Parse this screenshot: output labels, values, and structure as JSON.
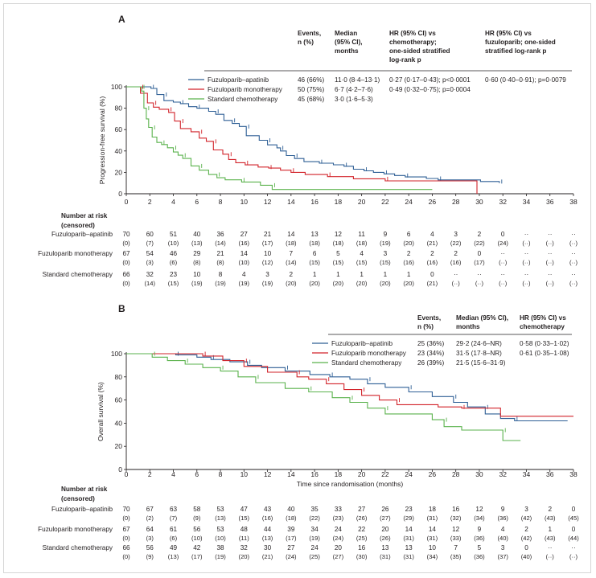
{
  "chart_data": [
    {
      "panel": "A",
      "type": "line",
      "ylabel": "Progression-free survival (%)",
      "xlabel": "",
      "xlim": [
        0,
        38
      ],
      "ylim": [
        0,
        100
      ],
      "xticks": [
        "0",
        "2",
        "4",
        "6",
        "8",
        "10",
        "12",
        "14",
        "16",
        "18",
        "20",
        "22",
        "24",
        "26",
        "28",
        "30",
        "32",
        "34",
        "36",
        "38"
      ],
      "yticks": [
        "0",
        "20",
        "40",
        "60",
        "80",
        "100"
      ],
      "table_header": {
        "events": [
          "Events,",
          "n (%)"
        ],
        "median": [
          "Median",
          "(95% CI),",
          "months"
        ],
        "hr_chemo": [
          "HR (95% CI) vs",
          "chemotherapy;",
          "one-sided stratified",
          "log-rank p"
        ],
        "hr_fuz": [
          "HR (95% CI) vs",
          "fuzuloparib; one-sided",
          "stratified log-rank p"
        ]
      },
      "series": [
        {
          "name": "Fuzuloparib–apatinib",
          "color": "#2e5f95",
          "events": "46 (66%)",
          "median": "11·0 (8·4–13·1)",
          "hr_chemo": "0·27 (0·17–0·43); p<0·0001",
          "hr_fuz": "0·60 (0·40–0·91); p=0·0079",
          "x": [
            0,
            2.1,
            2.6,
            3.2,
            4.0,
            4.6,
            5.3,
            6.0,
            7.0,
            7.6,
            8.3,
            9.0,
            9.6,
            10.2,
            11.3,
            12.0,
            12.8,
            13.1,
            13.6,
            14.3,
            15.1,
            16.4,
            17.6,
            18.5,
            19.3,
            20.2,
            21.0,
            21.9,
            22.8,
            23.7,
            25.5,
            26.5,
            30.1,
            31.7
          ],
          "y": [
            100,
            98.5,
            92.8,
            87.1,
            85.7,
            84.3,
            81.4,
            80,
            77.1,
            74.3,
            68.6,
            65.7,
            62.9,
            54.3,
            50,
            45.7,
            42.9,
            40,
            35.7,
            32.9,
            30,
            28.6,
            27.1,
            25.7,
            22.9,
            21.4,
            20,
            18.6,
            17.1,
            15.7,
            14.3,
            12.9,
            11.4,
            10
          ]
        },
        {
          "name": "Fuzuloparib monotherapy",
          "color": "#d2232a",
          "events": "50 (75%)",
          "median": "6·7 (4·2–7·6)",
          "hr_chemo": "0·49 (0·32–0·75); p=0·0004",
          "hr_fuz": "",
          "x": [
            0,
            1.2,
            1.8,
            2.3,
            2.8,
            3.6,
            4.1,
            4.6,
            5.5,
            6.2,
            6.8,
            7.4,
            8.2,
            8.7,
            9.3,
            10.1,
            11.2,
            12.1,
            13.1,
            14.0,
            15.2,
            17.1,
            19.3,
            22.0,
            29.8
          ],
          "y": [
            100,
            94,
            85,
            81,
            79,
            76,
            68,
            61,
            58,
            52,
            49,
            41,
            37,
            32,
            29,
            27,
            25,
            24,
            22,
            20,
            18,
            16,
            14,
            12,
            0
          ]
        },
        {
          "name": "Standard chemotherapy",
          "color": "#5ab24c",
          "events": "45 (68%)",
          "median": "3·0 (1·6–5·3)",
          "hr_chemo": "",
          "hr_fuz": "",
          "x": [
            0,
            1.3,
            1.5,
            1.7,
            1.9,
            2.2,
            2.6,
            3.0,
            3.5,
            4.0,
            4.4,
            4.8,
            5.5,
            6.2,
            7.0,
            7.7,
            8.4,
            9.8,
            11.4,
            12.4,
            26
          ],
          "y": [
            100,
            96,
            80,
            70,
            62,
            53,
            48,
            46,
            43,
            39,
            36,
            33,
            26,
            22,
            18,
            15,
            13,
            11,
            8,
            4,
            4
          ]
        }
      ],
      "risk_heading": [
        "Number at risk",
        "(censored)"
      ],
      "risk_table": [
        {
          "label": "Fuzuloparib–apatinib",
          "n": [
            "70",
            "60",
            "51",
            "40",
            "36",
            "27",
            "21",
            "14",
            "13",
            "12",
            "11",
            "9",
            "6",
            "4",
            "3",
            "2",
            "0",
            "··",
            "··",
            "··"
          ],
          "c": [
            "(0)",
            "(7)",
            "(10)",
            "(13)",
            "(14)",
            "(16)",
            "(17)",
            "(18)",
            "(18)",
            "(18)",
            "(18)",
            "(19)",
            "(20)",
            "(21)",
            "(22)",
            "(22)",
            "(24)",
            "(··)",
            "(··)",
            "(··)"
          ]
        },
        {
          "label": "Fuzuloparib monotherapy",
          "n": [
            "67",
            "54",
            "46",
            "29",
            "21",
            "14",
            "10",
            "7",
            "6",
            "5",
            "4",
            "3",
            "2",
            "2",
            "2",
            "0",
            "··",
            "··",
            "··",
            "··"
          ],
          "c": [
            "(0)",
            "(3)",
            "(6)",
            "(8)",
            "(8)",
            "(10)",
            "(12)",
            "(14)",
            "(15)",
            "(15)",
            "(15)",
            "(15)",
            "(16)",
            "(16)",
            "(16)",
            "(17)",
            "(··)",
            "(··)",
            "(··)",
            "(··)"
          ]
        },
        {
          "label": "Standard chemotherapy",
          "n": [
            "66",
            "32",
            "23",
            "10",
            "8",
            "4",
            "3",
            "2",
            "1",
            "1",
            "1",
            "1",
            "1",
            "0",
            "··",
            "··",
            "··",
            "··",
            "··",
            "··"
          ],
          "c": [
            "(0)",
            "(14)",
            "(15)",
            "(19)",
            "(19)",
            "(19)",
            "(19)",
            "(20)",
            "(20)",
            "(20)",
            "(20)",
            "(20)",
            "(20)",
            "(21)",
            "(··)",
            "(··)",
            "(··)",
            "(··)",
            "(··)",
            "(··)"
          ]
        }
      ]
    },
    {
      "panel": "B",
      "type": "line",
      "ylabel": "Overall survival (%)",
      "xlabel": "Time since randomisation (months)",
      "xlim": [
        0,
        38
      ],
      "ylim": [
        0,
        100
      ],
      "xticks": [
        "0",
        "2",
        "4",
        "6",
        "8",
        "10",
        "12",
        "14",
        "16",
        "18",
        "20",
        "22",
        "24",
        "26",
        "28",
        "30",
        "32",
        "34",
        "36",
        "38"
      ],
      "yticks": [
        "0",
        "20",
        "40",
        "60",
        "80",
        "100"
      ],
      "table_header": {
        "events": [
          "Events,",
          "n (%)"
        ],
        "median": [
          "Median (95% CI),",
          "months"
        ],
        "hr_chemo": [
          "HR (95% CI) vs",
          "chemotherapy"
        ]
      },
      "series": [
        {
          "name": "Fuzuloparib–apatinib",
          "color": "#2e5f95",
          "events": "25 (36%)",
          "median": "29·2 (24·6–NR)",
          "hr_chemo": "0·58 (0·33–1·02)",
          "x": [
            0,
            4.2,
            6.0,
            7.2,
            8.8,
            10.3,
            11.5,
            13.5,
            15.6,
            17.3,
            19.0,
            20.5,
            22.0,
            24.0,
            26.0,
            27.8,
            29.0,
            30.5,
            31.8,
            33.0,
            37.5
          ],
          "y": [
            100,
            99,
            97,
            95,
            93,
            90,
            88,
            85,
            82,
            80,
            78,
            74,
            71,
            67,
            63,
            58,
            54,
            48,
            44,
            42,
            42
          ]
        },
        {
          "name": "Fuzuloparib monotherapy",
          "color": "#d2232a",
          "events": "23 (34%)",
          "median": "31·5 (17·8–NR)",
          "hr_chemo": "0·61 (0·35–1·08)",
          "x": [
            0,
            6.5,
            8.2,
            10.0,
            12.0,
            14.5,
            15.5,
            17.0,
            18.5,
            20.0,
            21.5,
            23.0,
            26.5,
            28.5,
            31.8,
            38
          ],
          "y": [
            100,
            98,
            94,
            89,
            84,
            80,
            78,
            74,
            69,
            64,
            60,
            56,
            54,
            53,
            46,
            46
          ]
        },
        {
          "name": "Standard chemotherapy",
          "color": "#5ab24c",
          "events": "26 (39%)",
          "median": "21·5 (15·6–31·9)",
          "hr_chemo": "",
          "x": [
            0,
            2.2,
            3.5,
            5.0,
            6.5,
            8.0,
            9.5,
            11.0,
            13.5,
            15.5,
            17.5,
            19.0,
            20.5,
            22.0,
            26.0,
            27.0,
            28.5,
            32.0,
            33.5
          ],
          "y": [
            100,
            97,
            94,
            91,
            88,
            85,
            80,
            75,
            70,
            67,
            62,
            58,
            53,
            48,
            43,
            37,
            34,
            25,
            25
          ]
        }
      ],
      "risk_heading": [
        "Number at risk",
        "(censored)"
      ],
      "risk_table": [
        {
          "label": "Fuzuloparib–apatinib",
          "n": [
            "70",
            "67",
            "63",
            "58",
            "53",
            "47",
            "43",
            "40",
            "35",
            "33",
            "27",
            "26",
            "23",
            "18",
            "16",
            "12",
            "9",
            "3",
            "2",
            "0"
          ],
          "c": [
            "(0)",
            "(2)",
            "(7)",
            "(9)",
            "(13)",
            "(15)",
            "(16)",
            "(18)",
            "(22)",
            "(23)",
            "(26)",
            "(27)",
            "(29)",
            "(31)",
            "(32)",
            "(34)",
            "(36)",
            "(42)",
            "(43)",
            "(45)"
          ]
        },
        {
          "label": "Fuzuloparib monotherapy",
          "n": [
            "67",
            "64",
            "61",
            "56",
            "53",
            "48",
            "44",
            "39",
            "34",
            "24",
            "22",
            "20",
            "14",
            "14",
            "12",
            "9",
            "4",
            "2",
            "1",
            "0"
          ],
          "c": [
            "(0)",
            "(3)",
            "(6)",
            "(10)",
            "(10)",
            "(11)",
            "(13)",
            "(17)",
            "(19)",
            "(24)",
            "(25)",
            "(26)",
            "(31)",
            "(31)",
            "(33)",
            "(36)",
            "(40)",
            "(42)",
            "(43)",
            "(44)"
          ]
        },
        {
          "label": "Standard chemotherapy",
          "n": [
            "66",
            "56",
            "49",
            "42",
            "38",
            "32",
            "30",
            "27",
            "24",
            "20",
            "16",
            "13",
            "13",
            "10",
            "7",
            "5",
            "3",
            "0",
            "··",
            "··"
          ],
          "c": [
            "(0)",
            "(9)",
            "(13)",
            "(17)",
            "(19)",
            "(20)",
            "(21)",
            "(24)",
            "(25)",
            "(27)",
            "(30)",
            "(31)",
            "(31)",
            "(34)",
            "(35)",
            "(36)",
            "(37)",
            "(40)",
            "(··)",
            "(··)"
          ]
        }
      ]
    }
  ]
}
